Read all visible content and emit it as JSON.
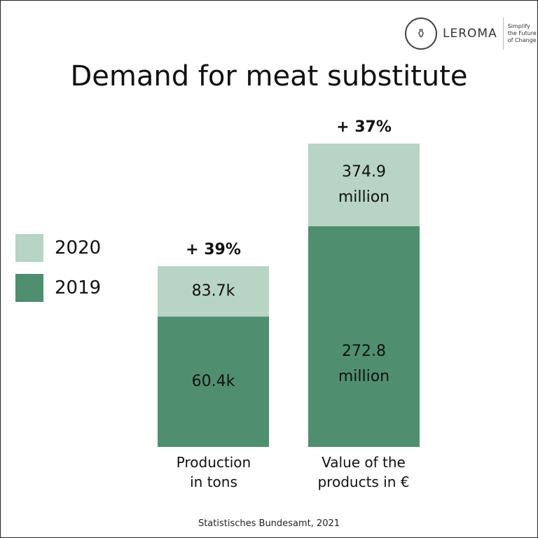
{
  "logo": {
    "name": "LEROMA",
    "tagline": [
      "Simplify",
      "the Future",
      "of Change"
    ]
  },
  "chart_data": {
    "type": "bar",
    "stacked": false,
    "title": "Demand for meat substitute",
    "categories": [
      "Production in tons",
      "Value of the products in €"
    ],
    "category_lines": [
      [
        "Production",
        "in tons"
      ],
      [
        "Value of the",
        "products in €"
      ]
    ],
    "series": [
      {
        "name": "2019",
        "values": [
          60.4,
          272.8
        ],
        "labels": [
          [
            "60.4k"
          ],
          [
            "272.8",
            "million"
          ]
        ],
        "color": "#4f8f70"
      },
      {
        "name": "2020",
        "values": [
          83.7,
          374.9
        ],
        "labels": [
          [
            "83.7k"
          ],
          [
            "374.9",
            "million"
          ]
        ],
        "color": "#b7d4c5"
      }
    ],
    "changes": [
      "+ 39%",
      "+ 37%"
    ],
    "legend": [
      "2020",
      "2019"
    ],
    "legend_placement": "left",
    "source": "Statistisches Bundesamt,  2021"
  }
}
